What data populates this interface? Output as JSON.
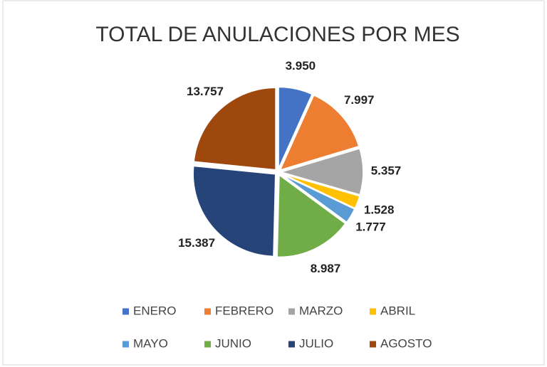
{
  "chart_data": {
    "type": "pie",
    "title": "TOTAL DE ANULACIONES POR MES",
    "categories": [
      "ENERO",
      "FEBRERO",
      "MARZO",
      "ABRIL",
      "MAYO",
      "JUNIO",
      "JULIO",
      "AGOSTO"
    ],
    "values": [
      3950,
      7997,
      5357,
      1528,
      1777,
      8987,
      15387,
      13757
    ],
    "value_labels": [
      "3.950",
      "7.997",
      "5.357",
      "1.528",
      "1.777",
      "8.987",
      "15.387",
      "13.757"
    ],
    "colors": [
      "#4472c4",
      "#ed7d31",
      "#a5a5a5",
      "#ffc000",
      "#5b9bd5",
      "#70ad47",
      "#264478",
      "#9e480e"
    ],
    "legend": "bottom"
  }
}
